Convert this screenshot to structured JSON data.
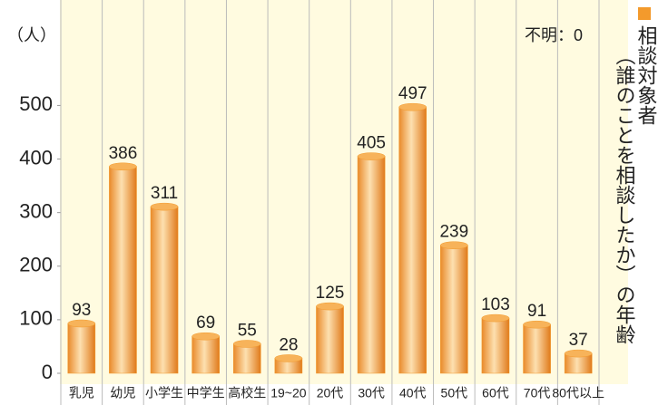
{
  "chart_data": {
    "type": "bar",
    "y_label": "（人）",
    "annotation": "不明：0",
    "subtitle": "（誰のことを相談したか）の年齢",
    "categories": [
      "乳児",
      "幼児",
      "小学生",
      "中学生",
      "高校生",
      "19~20",
      "20代",
      "30代",
      "40代",
      "50代",
      "60代",
      "70代",
      "80代以上"
    ],
    "series": [
      {
        "name": "相談対象者",
        "color": "#f39a2c",
        "values": [
          93,
          386,
          311,
          69,
          55,
          28,
          125,
          405,
          497,
          239,
          103,
          91,
          37
        ]
      }
    ],
    "ylim": [
      0,
      680
    ],
    "yticks": [
      0,
      100,
      200,
      300,
      400,
      500
    ],
    "grid": false
  }
}
